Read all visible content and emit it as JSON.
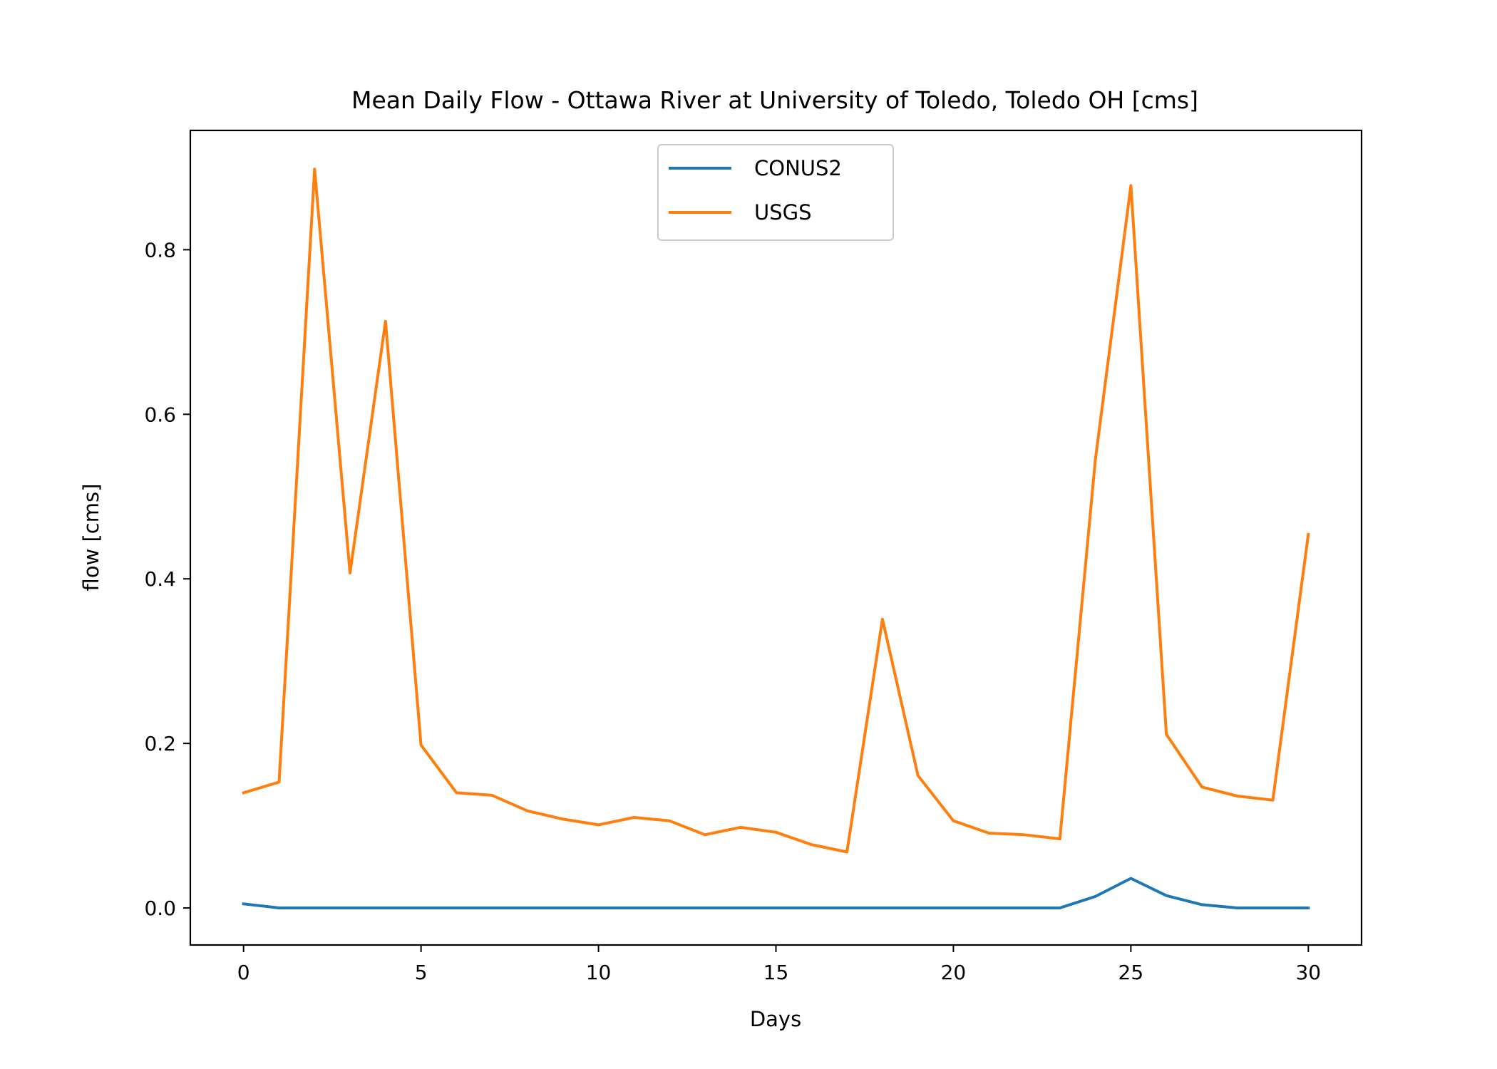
{
  "chart_data": {
    "type": "line",
    "title": "Mean Daily Flow - Ottawa River at University of Toledo, Toledo OH [cms]",
    "xlabel": "Days",
    "ylabel": "flow [cms]",
    "xlim": [
      -1.5,
      31.5
    ],
    "ylim": [
      -0.045,
      0.945
    ],
    "xticks": [
      0,
      5,
      10,
      15,
      20,
      25,
      30
    ],
    "xtick_labels": [
      "0",
      "5",
      "10",
      "15",
      "20",
      "25",
      "30"
    ],
    "yticks": [
      0.0,
      0.2,
      0.4,
      0.6,
      0.8
    ],
    "ytick_labels": [
      "0.0",
      "0.2",
      "0.4",
      "0.6",
      "0.8"
    ],
    "grid": false,
    "legend": "upper center",
    "x": [
      0,
      1,
      2,
      3,
      4,
      5,
      6,
      7,
      8,
      9,
      10,
      11,
      12,
      13,
      14,
      15,
      16,
      17,
      18,
      19,
      20,
      21,
      22,
      23,
      24,
      25,
      26,
      27,
      28,
      29,
      30
    ],
    "series": [
      {
        "name": "CONUS2",
        "color": "#1f77b4",
        "values": [
          0.005,
          0,
          0,
          0,
          0,
          0,
          0,
          0,
          0,
          0,
          0,
          0,
          0,
          0,
          0,
          0,
          0,
          0,
          0,
          0,
          0,
          0,
          0,
          0,
          0.014,
          0.036,
          0.015,
          0.004,
          0,
          0,
          0
        ]
      },
      {
        "name": "USGS",
        "color": "#ff7f0e",
        "values": [
          0.14,
          0.153,
          0.898,
          0.407,
          0.713,
          0.198,
          0.14,
          0.137,
          0.118,
          0.108,
          0.101,
          0.11,
          0.106,
          0.089,
          0.098,
          0.092,
          0.077,
          0.068,
          0.351,
          0.161,
          0.106,
          0.091,
          0.089,
          0.084,
          0.545,
          0.878,
          0.211,
          0.147,
          0.136,
          0.131,
          0.454
        ]
      }
    ]
  }
}
